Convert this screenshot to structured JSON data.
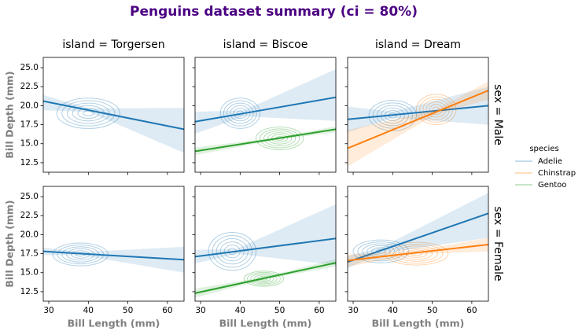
{
  "title": "Penguins dataset summary (ci = 80%)",
  "legend": {
    "title": "species",
    "entries": [
      {
        "name": "Adelie",
        "color": "#1f77b4"
      },
      {
        "name": "Chinstrap",
        "color": "#ff7f0e"
      },
      {
        "name": "Gentoo",
        "color": "#2ca02c"
      }
    ]
  },
  "chart_data": [
    {
      "type": "regression",
      "title": "island = Torgersen",
      "ylabel": "Bill Depth (mm)",
      "xlim": [
        28.6,
        64.2
      ],
      "ylim": [
        11.25,
        26.35
      ],
      "xticks": [
        30,
        40,
        50,
        60
      ],
      "yticks": [
        {
          "value": 12.5,
          "label": "12.5"
        },
        {
          "value": 15,
          "label": "15.0"
        },
        {
          "value": 17.5,
          "label": "17.5"
        },
        {
          "value": 20,
          "label": "20.0"
        },
        {
          "value": 22.5,
          "label": "22.5"
        },
        {
          "value": 25,
          "label": "25.0"
        }
      ],
      "series": [
        {
          "color": "#1f77b4",
          "x": [
            28.6,
            40,
            64.2
          ],
          "values": [
            20.6,
            19.42,
            16.9
          ],
          "lower": [
            19.4,
            19.2,
            13.8
          ],
          "upper": [
            21.4,
            19.65,
            19.7
          ],
          "kde_center": [
            40,
            19
          ],
          "kde_spread": [
            8,
            2
          ]
        }
      ]
    },
    {
      "type": "regression",
      "title": "island = Biscoe",
      "xlim": [
        28.6,
        64.2
      ],
      "ylim": [
        11.25,
        26.35
      ],
      "xticks": [
        30,
        40,
        50,
        60
      ],
      "yticks": [
        12.5,
        15,
        17.5,
        20,
        22.5,
        25
      ],
      "series": [
        {
          "color": "#1f77b4",
          "x": [
            28.6,
            41,
            64.2
          ],
          "values": [
            17.9,
            19,
            21.1
          ],
          "lower": [
            16.3,
            18.6,
            18
          ],
          "upper": [
            19.2,
            19.4,
            24.8
          ],
          "kde_center": [
            40,
            19
          ],
          "kde_spread": [
            5,
            2
          ]
        },
        {
          "color": "#2ca02c",
          "x": [
            28.6,
            49,
            64.2
          ],
          "values": [
            14,
            15.66,
            16.9
          ],
          "lower": [
            13.5,
            15.5,
            16.5
          ],
          "upper": [
            14.5,
            15.8,
            17.3
          ],
          "kde_center": [
            50,
            15.7
          ],
          "kde_spread": [
            6,
            1.5
          ]
        }
      ]
    },
    {
      "type": "regression",
      "title": "island = Dream",
      "row_label": "sex = Male",
      "xlim": [
        28.6,
        64.2
      ],
      "ylim": [
        11.25,
        26.35
      ],
      "xticks": [
        30,
        40,
        50,
        60
      ],
      "yticks": [
        12.5,
        15,
        17.5,
        20,
        22.5,
        25
      ],
      "series": [
        {
          "color": "#1f77b4",
          "x": [
            28.6,
            40,
            64.2
          ],
          "values": [
            18.2,
            18.78,
            20
          ],
          "lower": [
            16.5,
            18.4,
            17.5
          ],
          "upper": [
            19.9,
            19.2,
            22.5
          ],
          "kde_center": [
            40,
            18.7
          ],
          "kde_spread": [
            6,
            2
          ]
        },
        {
          "color": "#ff7f0e",
          "x": [
            28.6,
            51,
            64.2
          ],
          "values": [
            14.4,
            19.18,
            22
          ],
          "lower": [
            12,
            18.9,
            20.8
          ],
          "upper": [
            16.8,
            19.5,
            23.2
          ],
          "kde_center": [
            51,
            19.5
          ],
          "kde_spread": [
            5,
            2
          ]
        }
      ]
    },
    {
      "type": "regression",
      "ylabel": "Bill Depth (mm)",
      "xlabel": "Bill Length (mm)",
      "xlim": [
        28.6,
        64.2
      ],
      "ylim": [
        11.25,
        26.35
      ],
      "xticks": [
        30,
        40,
        50,
        60
      ],
      "yticks": [
        {
          "value": 12.5,
          "label": "12.5"
        },
        {
          "value": 15,
          "label": "15.0"
        },
        {
          "value": 17.5,
          "label": "17.5"
        },
        {
          "value": 20,
          "label": "20.0"
        },
        {
          "value": 22.5,
          "label": "22.5"
        },
        {
          "value": 25,
          "label": "25.0"
        }
      ],
      "series": [
        {
          "color": "#1f77b4",
          "x": [
            28.6,
            38,
            64.2
          ],
          "values": [
            17.8,
            17.51,
            16.7
          ],
          "lower": [
            17.3,
            17.3,
            15
          ],
          "upper": [
            18.3,
            17.7,
            18.4
          ],
          "kde_center": [
            38,
            17.4
          ],
          "kde_spread": [
            7,
            1.5
          ]
        }
      ]
    },
    {
      "type": "regression",
      "xlabel": "Bill Length (mm)",
      "xlim": [
        28.6,
        64.2
      ],
      "ylim": [
        11.25,
        26.35
      ],
      "xticks": [
        30,
        40,
        50,
        60
      ],
      "yticks": [
        12.5,
        15,
        17.5,
        20,
        22.5,
        25
      ],
      "series": [
        {
          "color": "#1f77b4",
          "x": [
            28.6,
            39,
            64.2
          ],
          "values": [
            17.1,
            17.8,
            19.5
          ],
          "lower": [
            16.2,
            17.5,
            16
          ],
          "upper": [
            18,
            18.1,
            24
          ],
          "kde_center": [
            38,
            17.8
          ],
          "kde_spread": [
            6,
            2.5
          ]
        },
        {
          "color": "#2ca02c",
          "x": [
            28.6,
            46,
            64.2
          ],
          "values": [
            12.3,
            14.26,
            16.3
          ],
          "lower": [
            11.7,
            14.1,
            15.8
          ],
          "upper": [
            12.9,
            14.4,
            16.8
          ],
          "kde_center": [
            46,
            14.2
          ],
          "kde_spread": [
            5,
            1
          ]
        }
      ]
    },
    {
      "type": "regression",
      "xlabel": "Bill Length (mm)",
      "row_label": "sex = Female",
      "xlim": [
        28.6,
        64.2
      ],
      "ylim": [
        11.25,
        26.35
      ],
      "xticks": [
        30,
        40,
        50,
        60
      ],
      "yticks": [
        12.5,
        15,
        17.5,
        20,
        22.5,
        25
      ],
      "series": [
        {
          "color": "#1f77b4",
          "x": [
            28.6,
            37,
            64.2
          ],
          "values": [
            16.4,
            17.91,
            22.8
          ],
          "lower": [
            15.6,
            17.5,
            19.6
          ],
          "upper": [
            17.2,
            18.3,
            25.5
          ],
          "kde_center": [
            37,
            17.8
          ],
          "kde_spread": [
            7,
            1.5
          ]
        },
        {
          "color": "#ff7f0e",
          "x": [
            28.6,
            46,
            64.2
          ],
          "values": [
            16.6,
            17.63,
            18.7
          ],
          "lower": [
            15.8,
            17.4,
            17.8
          ],
          "upper": [
            17.4,
            17.9,
            19.6
          ],
          "kde_center": [
            46,
            17.5
          ],
          "kde_spread": [
            8,
            1.5
          ]
        }
      ]
    }
  ]
}
